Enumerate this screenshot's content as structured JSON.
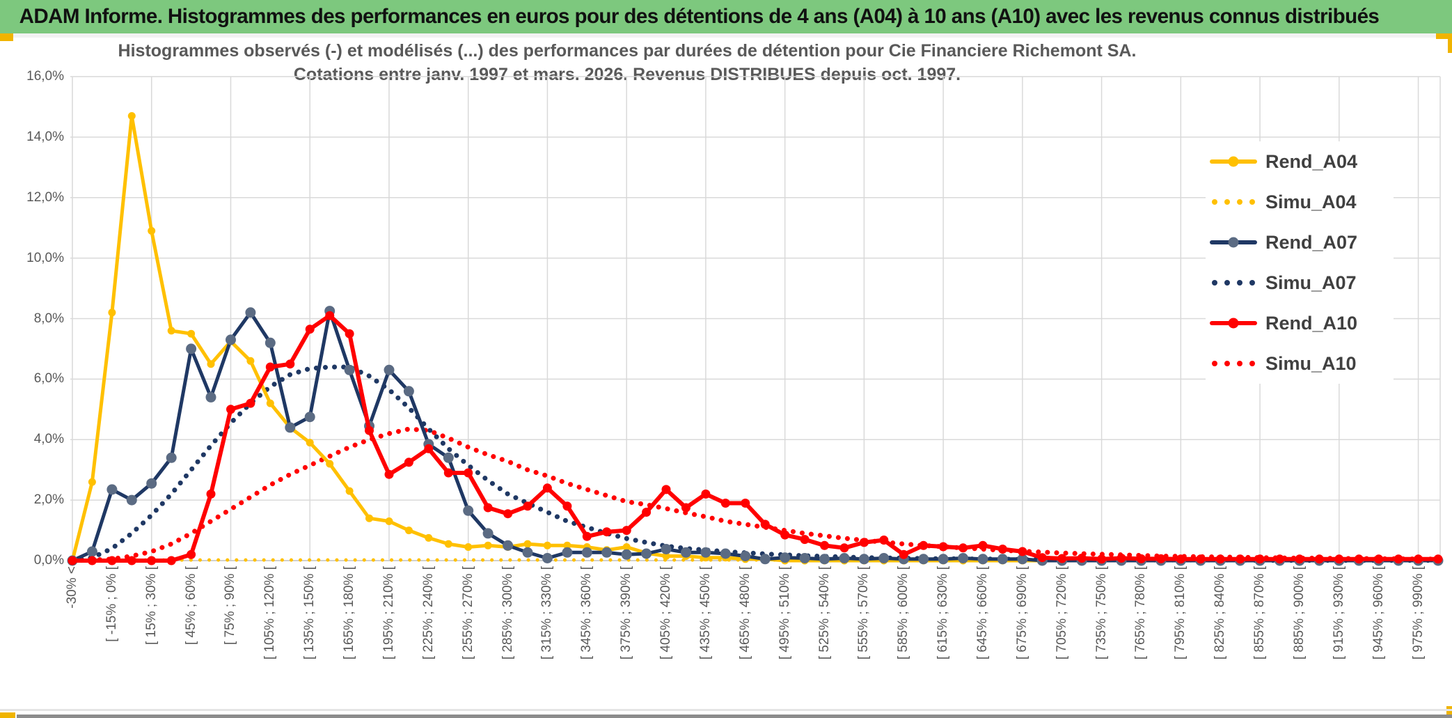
{
  "banner": {
    "title": "ADAM Informe. Histogrammes des performances en euros pour des détentions de 4 ans (A04) à 10 ans (A10) avec les revenus connus distribués",
    "bg_color": "#7DC87E",
    "accent_color": "#F0B400"
  },
  "chart": {
    "title_line1": "Histogrammes observés (-) et modélisés (...) des performances par durées de détention pour Cie Financiere Richemont SA.",
    "title_line2": "Cotations entre janv. 1997 et mars. 2026. Revenus DISTRIBUES depuis oct. 1997.",
    "legend": [
      {
        "label": "Rend_A04"
      },
      {
        "label": "Simu_A04"
      },
      {
        "label": "Rend_A07"
      },
      {
        "label": "Simu_A07"
      },
      {
        "label": "Rend_A10"
      },
      {
        "label": "Simu_A10"
      }
    ]
  },
  "chart_data": {
    "type": "line",
    "title": "Histogrammes observés (-) et modélisés (...) des performances par durées de détention pour Cie Financiere Richemont SA. Cotations entre janv. 1997 et mars. 2026. Revenus DISTRIBUES depuis oct. 1997.",
    "xlabel": "",
    "ylabel": "",
    "ylim": [
      0,
      16
    ],
    "grid": true,
    "legend_position": "right",
    "y_ticks": [
      {
        "value": 0,
        "label": "0,0%"
      },
      {
        "value": 2,
        "label": "2,0%"
      },
      {
        "value": 4,
        "label": "4,0%"
      },
      {
        "value": 6,
        "label": "6,0%"
      },
      {
        "value": 8,
        "label": "8,0%"
      },
      {
        "value": 10,
        "label": "10,0%"
      },
      {
        "value": 12,
        "label": "12,0%"
      },
      {
        "value": 14,
        "label": "14,0%"
      },
      {
        "value": 16,
        "label": "16,0%"
      }
    ],
    "categories": [
      "-30% <",
      "",
      "[ -15% ; 0% [",
      "",
      "[ 15% ; 30% [",
      "",
      "[ 45% ; 60% [",
      "",
      "[ 75% ; 90% [",
      "",
      "[ 105% ; 120% [",
      "",
      "[ 135% ; 150% [",
      "",
      "[ 165% ; 180% [",
      "",
      "[ 195% ; 210% [",
      "",
      "[ 225% ; 240% [",
      "",
      "[ 255% ; 270% [",
      "",
      "[ 285% ; 300% [",
      "",
      "[ 315% ; 330% [",
      "",
      "[ 345% ; 360% [",
      "",
      "[ 375% ; 390% [",
      "",
      "[ 405% ; 420% [",
      "",
      "[ 435% ; 450% [",
      "",
      "[ 465% ; 480% [",
      "",
      "[ 495% ; 510% [",
      "",
      "[ 525% ; 540% [",
      "",
      "[ 555% ; 570% [",
      "",
      "[ 585% ; 600% [",
      "",
      "[ 615% ; 630% [",
      "",
      "[ 645% ; 660% [",
      "",
      "[ 675% ; 690% [",
      "",
      "[ 705% ; 720% [",
      "",
      "[ 735% ; 750% [",
      "",
      "[ 765% ; 780% [",
      "",
      "[ 795% ; 810% [",
      "",
      "[ 825% ; 840% [",
      "",
      "[ 855% ; 870% [",
      "",
      "[ 885% ; 900% [",
      "",
      "[ 915% ; 930% [",
      "",
      "[ 945% ; 960% [",
      "",
      "[ 975% ; 990% [",
      ""
    ],
    "series": [
      {
        "name": "Rend_A04",
        "color": "#FFC000",
        "marker_color": "#FFC000",
        "line": "solid",
        "marker": true,
        "line_width": 5,
        "marker_r": 5.5,
        "values": [
          0,
          2.6,
          8.2,
          14.7,
          10.9,
          7.6,
          7.5,
          6.5,
          7.25,
          6.6,
          5.2,
          4.4,
          3.9,
          3.2,
          2.3,
          1.4,
          1.3,
          1.0,
          0.75,
          0.55,
          0.45,
          0.5,
          0.45,
          0.55,
          0.5,
          0.5,
          0.45,
          0.35,
          0.45,
          0.25,
          0.15,
          0.15,
          0.1,
          0.1,
          0.05,
          0.05,
          0,
          0,
          0,
          0,
          0,
          0,
          0,
          0,
          0,
          0,
          0,
          0,
          0,
          0,
          0,
          0,
          0,
          0,
          0,
          0,
          0,
          0,
          0,
          0,
          0,
          0,
          0,
          0,
          0,
          0,
          0,
          0,
          0,
          0
        ]
      },
      {
        "name": "Simu_A04",
        "color": "#FFC000",
        "line": "dotted",
        "marker": false,
        "line_width": 5,
        "values": [
          0.02,
          0.02,
          0.02,
          0.02,
          0.02,
          0.02,
          0.02,
          0.02,
          0.02,
          0.02,
          0.02,
          0.02,
          0.02,
          0.02,
          0.02,
          0.02,
          0.02,
          0.02,
          0.02,
          0.02,
          0.02,
          0.02,
          0.02,
          0.02,
          0.02,
          0.02,
          0.02,
          0.02,
          0.02,
          0.02,
          0.02,
          0.02,
          0.02,
          0.02,
          0.02,
          0.02,
          0.02,
          0.02,
          0.02,
          0.02,
          0.02,
          0.02,
          0.02,
          0.02,
          0.02,
          0.02,
          0.02,
          0.02,
          0.02,
          0.02,
          0.02,
          0.02,
          0.02,
          0.02,
          0.02,
          0.02,
          0.02,
          0.02,
          0.02,
          0.02,
          0.02,
          0.02,
          0.02,
          0.02,
          0.02,
          0.02,
          0.02,
          0.02,
          0.02,
          0.02
        ]
      },
      {
        "name": "Rend_A07",
        "color": "#1F3864",
        "marker_color": "#5B6B83",
        "line": "solid",
        "marker": true,
        "line_width": 5,
        "marker_r": 7.5,
        "values": [
          0,
          0.3,
          2.35,
          2.0,
          2.55,
          3.4,
          7.0,
          5.4,
          7.3,
          8.2,
          7.2,
          4.4,
          4.75,
          8.25,
          6.3,
          4.45,
          6.3,
          5.6,
          3.85,
          3.4,
          1.65,
          0.9,
          0.5,
          0.27,
          0.08,
          0.27,
          0.27,
          0.27,
          0.2,
          0.23,
          0.38,
          0.27,
          0.27,
          0.23,
          0.15,
          0.05,
          0.1,
          0.08,
          0.05,
          0.08,
          0.05,
          0.08,
          0.05,
          0.05,
          0.05,
          0.08,
          0.05,
          0.05,
          0.05,
          0,
          0,
          0,
          0,
          0,
          0,
          0,
          0,
          0,
          0,
          0,
          0,
          0,
          0,
          0,
          0,
          0,
          0,
          0,
          0,
          0
        ]
      },
      {
        "name": "Simu_A07",
        "color": "#1F3864",
        "line": "dotted",
        "marker": false,
        "line_width": 7,
        "values": [
          0,
          0.1,
          0.4,
          0.9,
          1.5,
          2.2,
          3.0,
          3.8,
          4.55,
          5.2,
          5.75,
          6.15,
          6.35,
          6.4,
          6.4,
          6.1,
          5.65,
          5.05,
          4.35,
          3.7,
          3.15,
          2.65,
          2.2,
          1.9,
          1.6,
          1.3,
          1.1,
          0.9,
          0.73,
          0.6,
          0.48,
          0.4,
          0.35,
          0.3,
          0.26,
          0.22,
          0.19,
          0.16,
          0.14,
          0.12,
          0.1,
          0.09,
          0.08,
          0.07,
          0.06,
          0.06,
          0.05,
          0.05,
          0.04,
          0.04,
          0.03,
          0.03,
          0.03,
          0.02,
          0.02,
          0.02,
          0.02,
          0.02,
          0.02,
          0.02,
          0.01,
          0.01,
          0.01,
          0.01,
          0.01,
          0.01,
          0.01,
          0.01,
          0.01,
          0.01
        ]
      },
      {
        "name": "Rend_A10",
        "color": "#FF0000",
        "marker_color": "#FF0000",
        "line": "solid",
        "marker": true,
        "line_width": 6,
        "marker_r": 6.5,
        "values": [
          0,
          0,
          0,
          0,
          0,
          0,
          0.2,
          2.2,
          5.0,
          5.2,
          6.4,
          6.5,
          7.65,
          8.1,
          7.5,
          4.3,
          2.85,
          3.25,
          3.7,
          2.9,
          2.9,
          1.75,
          1.55,
          1.8,
          2.4,
          1.8,
          0.8,
          0.95,
          1.0,
          1.6,
          2.35,
          1.75,
          2.2,
          1.9,
          1.9,
          1.2,
          0.85,
          0.7,
          0.5,
          0.42,
          0.6,
          0.68,
          0.2,
          0.5,
          0.46,
          0.42,
          0.5,
          0.38,
          0.3,
          0.1,
          0.07,
          0.08,
          0.05,
          0.08,
          0.06,
          0.06,
          0.05,
          0.05,
          0.05,
          0.05,
          0.05,
          0.05,
          0.05,
          0.05,
          0.05,
          0.05,
          0.05,
          0.05,
          0.05,
          0.05
        ]
      },
      {
        "name": "Simu_A10",
        "color": "#FF0000",
        "line": "dotted",
        "marker": false,
        "line_width": 7,
        "values": [
          0,
          0.02,
          0.05,
          0.15,
          0.3,
          0.55,
          0.9,
          1.3,
          1.7,
          2.1,
          2.5,
          2.85,
          3.15,
          3.45,
          3.75,
          4.0,
          4.2,
          4.35,
          4.3,
          4.05,
          3.75,
          3.5,
          3.28,
          3.0,
          2.8,
          2.55,
          2.35,
          2.15,
          1.95,
          1.85,
          1.72,
          1.58,
          1.45,
          1.3,
          1.2,
          1.1,
          1.0,
          0.9,
          0.82,
          0.74,
          0.67,
          0.61,
          0.55,
          0.5,
          0.46,
          0.42,
          0.38,
          0.34,
          0.31,
          0.28,
          0.25,
          0.23,
          0.21,
          0.19,
          0.17,
          0.15,
          0.14,
          0.13,
          0.12,
          0.11,
          0.1,
          0.09,
          0.08,
          0.08,
          0.07,
          0.07,
          0.06,
          0.06,
          0.05,
          0.05
        ]
      }
    ],
    "grid_color": "#D9D9D9",
    "axis_label_color": "#595959",
    "x_gridline_every_n_bins": 4
  }
}
